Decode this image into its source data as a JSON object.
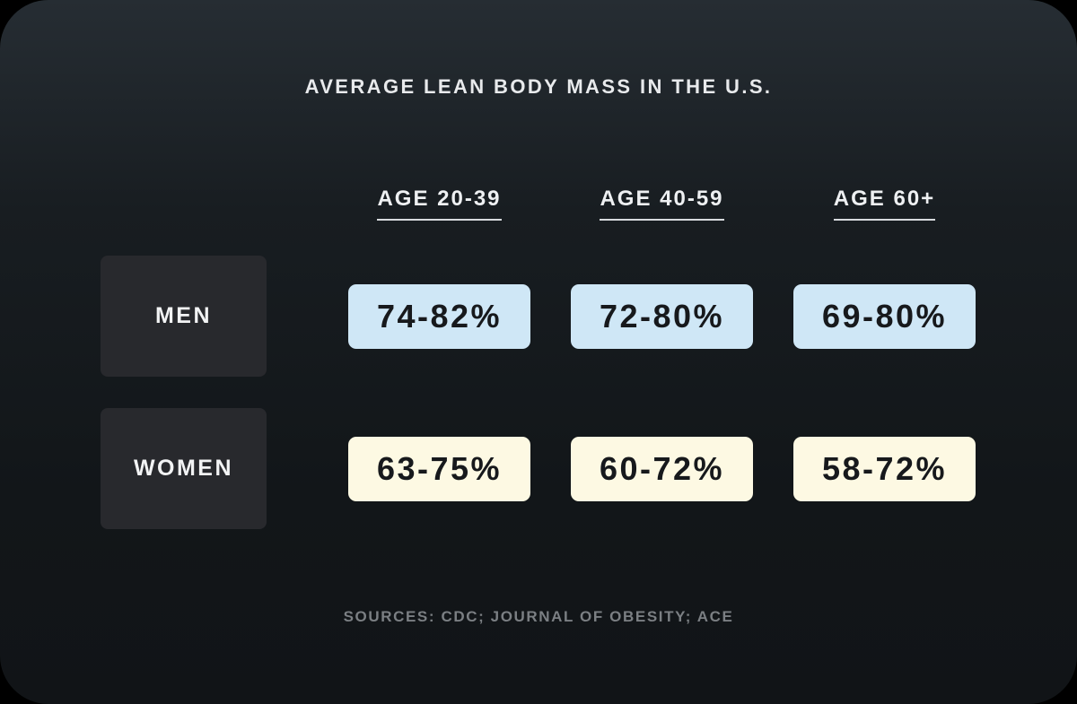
{
  "chart_data": {
    "type": "table",
    "title": "AVERAGE LEAN BODY MASS IN THE U.S.",
    "columns": [
      "AGE 20-39",
      "AGE 40-59",
      "AGE 60+"
    ],
    "rows": [
      {
        "label": "MEN",
        "values": [
          "74-82%",
          "72-80%",
          "69-80%"
        ]
      },
      {
        "label": "WOMEN",
        "values": [
          "63-75%",
          "60-72%",
          "58-72%"
        ]
      }
    ],
    "sources": "SOURCES: CDC; JOURNAL OF OBESITY; ACE"
  },
  "colors": {
    "background": "#14181b",
    "men_cell": "#cfe7f6",
    "women_cell": "#fdf9e3",
    "row_label_box": "#28292d",
    "title_text": "#e8eaec",
    "sources_text": "#7b7f83"
  }
}
